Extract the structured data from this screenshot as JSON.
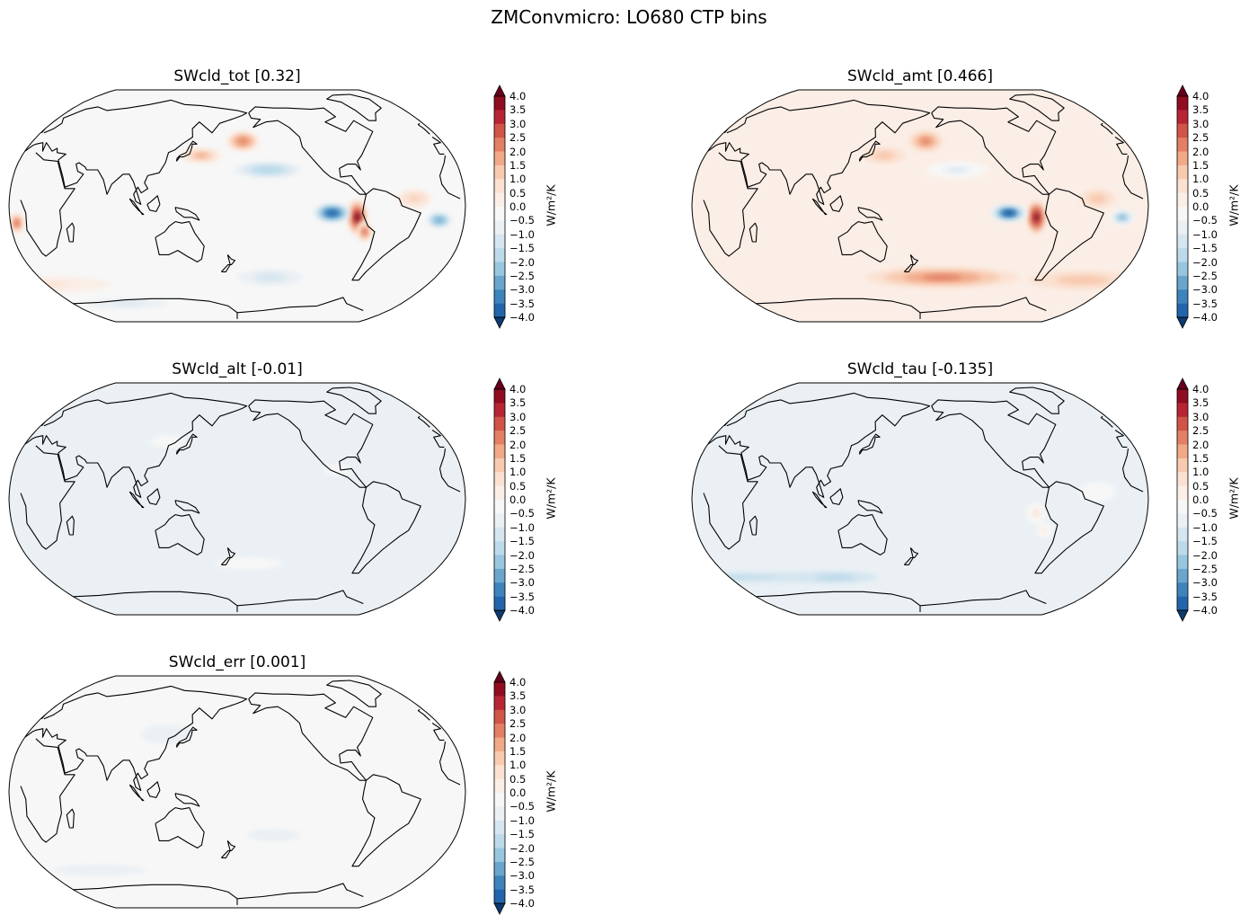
{
  "figure": {
    "suptitle": "ZMConvmicro: LO680 CTP bins"
  },
  "colormap": {
    "name": "RdBu_r",
    "colors": [
      "#0d3a70",
      "#195696",
      "#2166ac",
      "#3d84bd",
      "#6aa5cd",
      "#98c6df",
      "#bcdaea",
      "#d6e6f0",
      "#eaf0f4",
      "#f7f7f7",
      "#fbeee6",
      "#fbe1d1",
      "#f8cab0",
      "#f1a988",
      "#e27f65",
      "#d05448",
      "#b72534",
      "#900c20",
      "#67001f"
    ]
  },
  "chart_data": [
    {
      "type": "heatmap",
      "title": "SWcld_tot [0.32]",
      "projection": "Robinson",
      "units_label": "W/m²/K",
      "levels": [
        -4.0,
        -3.5,
        -3.0,
        -2.5,
        -2.0,
        -1.5,
        -1.0,
        -0.5,
        0.0,
        0.5,
        1.0,
        1.5,
        2.0,
        2.5,
        3.0,
        3.5,
        4.0
      ],
      "tick_labels": [
        "4.0",
        "3.5",
        "3.0",
        "2.5",
        "2.0",
        "1.5",
        "1.0",
        "0.5",
        "0.0",
        "−0.5",
        "−1.0",
        "−1.5",
        "−2.0",
        "−2.5",
        "−3.0",
        "−3.5",
        "−4.0"
      ],
      "colorbar_extend": "both",
      "background_level": 0.25,
      "features": [
        {
          "lon": -85,
          "lat": -8,
          "value": 4.2,
          "rlon": 8,
          "rlat": 14
        },
        {
          "lon": -78,
          "lat": -18,
          "value": 3.2,
          "rlon": 6,
          "rlat": 8
        },
        {
          "lon": -105,
          "lat": -5,
          "value": -3.5,
          "rlon": 14,
          "rlat": 7
        },
        {
          "lon": -20,
          "lat": -10,
          "value": -2.5,
          "rlon": 10,
          "rlat": 6
        },
        {
          "lon": -155,
          "lat": 25,
          "value": -1.5,
          "rlon": 28,
          "rlat": 6
        },
        {
          "lon": -175,
          "lat": 45,
          "value": 2.8,
          "rlon": 15,
          "rlat": 8
        },
        {
          "lon": 150,
          "lat": 35,
          "value": 2.0,
          "rlon": 18,
          "rlat": 6
        },
        {
          "lon": 5,
          "lat": -12,
          "value": 3.0,
          "rlon": 6,
          "rlat": 8
        },
        {
          "lon": -40,
          "lat": 5,
          "value": 1.8,
          "rlon": 14,
          "rlat": 7
        },
        {
          "lon": 0,
          "lat": -55,
          "value": 1.2,
          "rlon": 80,
          "rlat": 8
        },
        {
          "lon": -150,
          "lat": -50,
          "value": -0.8,
          "rlon": 30,
          "rlat": 6
        },
        {
          "lon": 60,
          "lat": -70,
          "value": -0.6,
          "rlon": 60,
          "rlat": 5
        }
      ]
    },
    {
      "type": "heatmap",
      "title": "SWcld_amt [0.466]",
      "projection": "Robinson",
      "units_label": "W/m²/K",
      "levels": [
        -4.0,
        -3.5,
        -3.0,
        -2.5,
        -2.0,
        -1.5,
        -1.0,
        -0.5,
        0.0,
        0.5,
        1.0,
        1.5,
        2.0,
        2.5,
        3.0,
        3.5,
        4.0
      ],
      "tick_labels": [
        "4.0",
        "3.5",
        "3.0",
        "2.5",
        "2.0",
        "1.5",
        "1.0",
        "0.5",
        "0.0",
        "−0.5",
        "−1.0",
        "−1.5",
        "−2.0",
        "−2.5",
        "−3.0",
        "−3.5",
        "−4.0"
      ],
      "colorbar_extend": "both",
      "background_level": 0.8,
      "features": [
        {
          "lon": -88,
          "lat": -8,
          "value": 4.2,
          "rlon": 7,
          "rlat": 12
        },
        {
          "lon": -110,
          "lat": -5,
          "value": -3.8,
          "rlon": 15,
          "rlat": 7
        },
        {
          "lon": -20,
          "lat": -8,
          "value": -2.2,
          "rlon": 10,
          "rlat": 6
        },
        {
          "lon": -160,
          "lat": -50,
          "value": 2.6,
          "rlon": 70,
          "rlat": 8
        },
        {
          "lon": -30,
          "lat": -52,
          "value": 1.8,
          "rlon": 50,
          "rlat": 7
        },
        {
          "lon": -175,
          "lat": 45,
          "value": 2.5,
          "rlon": 15,
          "rlat": 8
        },
        {
          "lon": 150,
          "lat": 35,
          "value": 1.8,
          "rlon": 18,
          "rlat": 6
        },
        {
          "lon": -150,
          "lat": 25,
          "value": -0.8,
          "rlon": 25,
          "rlat": 6
        },
        {
          "lon": -40,
          "lat": 5,
          "value": 1.8,
          "rlon": 14,
          "rlat": 7
        }
      ]
    },
    {
      "type": "heatmap",
      "title": "SWcld_alt [-0.01]",
      "projection": "Robinson",
      "units_label": "W/m²/K",
      "levels": [
        -4.0,
        -3.5,
        -3.0,
        -2.5,
        -2.0,
        -1.5,
        -1.0,
        -0.5,
        0.0,
        0.5,
        1.0,
        1.5,
        2.0,
        2.5,
        3.0,
        3.5,
        4.0
      ],
      "tick_labels": [
        "4.0",
        "3.5",
        "3.0",
        "2.5",
        "2.0",
        "1.5",
        "1.0",
        "0.5",
        "0.0",
        "−0.5",
        "−1.0",
        "−1.5",
        "−2.0",
        "−2.5",
        "−3.0",
        "−3.5",
        "−4.0"
      ],
      "colorbar_extend": "both",
      "background_level": -0.25,
      "features": [
        {
          "lon": -170,
          "lat": -45,
          "value": 0.3,
          "rlon": 40,
          "rlat": 6
        },
        {
          "lon": 120,
          "lat": 40,
          "value": 0.3,
          "rlon": 20,
          "rlat": 6
        },
        {
          "lon": -100,
          "lat": 20,
          "value": 0.3,
          "rlon": 15,
          "rlat": 5
        }
      ]
    },
    {
      "type": "heatmap",
      "title": "SWcld_tau [-0.135]",
      "projection": "Robinson",
      "units_label": "W/m²/K",
      "levels": [
        -4.0,
        -3.5,
        -3.0,
        -2.5,
        -2.0,
        -1.5,
        -1.0,
        -0.5,
        0.0,
        0.5,
        1.0,
        1.5,
        2.0,
        2.5,
        3.0,
        3.5,
        4.0
      ],
      "tick_labels": [
        "4.0",
        "3.5",
        "3.0",
        "2.5",
        "2.0",
        "1.5",
        "1.0",
        "0.5",
        "0.0",
        "−0.5",
        "−1.0",
        "−1.5",
        "−2.0",
        "−2.5",
        "−3.0",
        "−3.5",
        "−4.0"
      ],
      "colorbar_extend": "both",
      "background_level": -0.25,
      "features": [
        {
          "lon": -88,
          "lat": -10,
          "value": 1.2,
          "rlon": 8,
          "rlat": 8
        },
        {
          "lon": -80,
          "lat": -22,
          "value": 0.8,
          "rlon": 6,
          "rlat": 6
        },
        {
          "lon": 0,
          "lat": -55,
          "value": -1.2,
          "rlon": 180,
          "rlat": 5
        },
        {
          "lon": 100,
          "lat": -55,
          "value": -1.5,
          "rlon": 40,
          "rlat": 4
        },
        {
          "lon": -40,
          "lat": 5,
          "value": 0.3,
          "rlon": 20,
          "rlat": 10
        }
      ]
    },
    {
      "type": "heatmap",
      "title": "SWcld_err [0.001]",
      "projection": "Robinson",
      "units_label": "W/m²/K",
      "levels": [
        -4.0,
        -3.5,
        -3.0,
        -2.5,
        -2.0,
        -1.5,
        -1.0,
        -0.5,
        0.0,
        0.5,
        1.0,
        1.5,
        2.0,
        2.5,
        3.0,
        3.5,
        4.0
      ],
      "tick_labels": [
        "4.0",
        "3.5",
        "3.0",
        "2.5",
        "2.0",
        "1.5",
        "1.0",
        "0.5",
        "0.0",
        "−0.5",
        "−1.0",
        "−1.5",
        "−2.0",
        "−2.5",
        "−3.0",
        "−3.5",
        "−4.0"
      ],
      "colorbar_extend": "both",
      "background_level": 0.25,
      "features": [
        {
          "lon": 120,
          "lat": 40,
          "value": -0.3,
          "rlon": 30,
          "rlat": 10
        },
        {
          "lon": -150,
          "lat": -30,
          "value": -0.3,
          "rlon": 30,
          "rlat": 6
        },
        {
          "lon": 50,
          "lat": -55,
          "value": -0.3,
          "rlon": 60,
          "rlat": 5
        }
      ]
    }
  ]
}
